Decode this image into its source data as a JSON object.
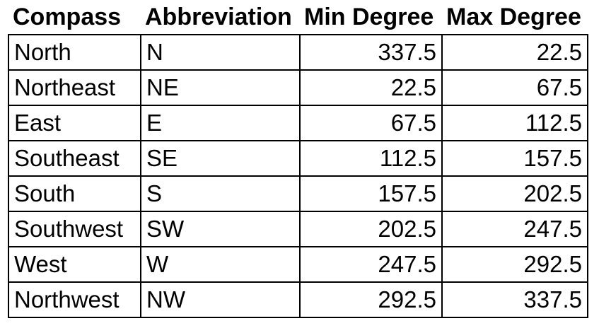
{
  "chart_data": {
    "type": "table",
    "columns": [
      "Compass",
      "Abbreviation",
      "Min Degree",
      "Max Degree"
    ],
    "rows": [
      [
        "North",
        "N",
        337.5,
        22.5
      ],
      [
        "Northeast",
        "NE",
        22.5,
        67.5
      ],
      [
        "East",
        "E",
        67.5,
        112.5
      ],
      [
        "Southeast",
        "SE",
        112.5,
        157.5
      ],
      [
        "South",
        "S",
        157.5,
        202.5
      ],
      [
        "Southwest",
        "SW",
        202.5,
        247.5
      ],
      [
        "West",
        "W",
        247.5,
        292.5
      ],
      [
        "Northwest",
        "NW",
        292.5,
        337.5
      ]
    ],
    "layout_hints": {
      "header_style": "bold, no borders",
      "body_style": "black cell borders, names left-aligned, numbers right-aligned",
      "grid": "on (body only)"
    }
  },
  "table": {
    "columns": {
      "compass": "Compass",
      "abbreviation": "Abbreviation",
      "min_degree": "Min Degree",
      "max_degree": "Max Degree"
    },
    "rows": [
      {
        "compass": "North",
        "abbreviation": "N",
        "min_degree": "337.5",
        "max_degree": "22.5"
      },
      {
        "compass": "Northeast",
        "abbreviation": "NE",
        "min_degree": "22.5",
        "max_degree": "67.5"
      },
      {
        "compass": "East",
        "abbreviation": "E",
        "min_degree": "67.5",
        "max_degree": "112.5"
      },
      {
        "compass": "Southeast",
        "abbreviation": "SE",
        "min_degree": "112.5",
        "max_degree": "157.5"
      },
      {
        "compass": "South",
        "abbreviation": "S",
        "min_degree": "157.5",
        "max_degree": "202.5"
      },
      {
        "compass": "Southwest",
        "abbreviation": "SW",
        "min_degree": "202.5",
        "max_degree": "247.5"
      },
      {
        "compass": "West",
        "abbreviation": "W",
        "min_degree": "247.5",
        "max_degree": "292.5"
      },
      {
        "compass": "Northwest",
        "abbreviation": "NW",
        "min_degree": "292.5",
        "max_degree": "337.5"
      }
    ],
    "colors": {
      "text": "#000000",
      "border": "#000000",
      "background": "#ffffff"
    }
  }
}
